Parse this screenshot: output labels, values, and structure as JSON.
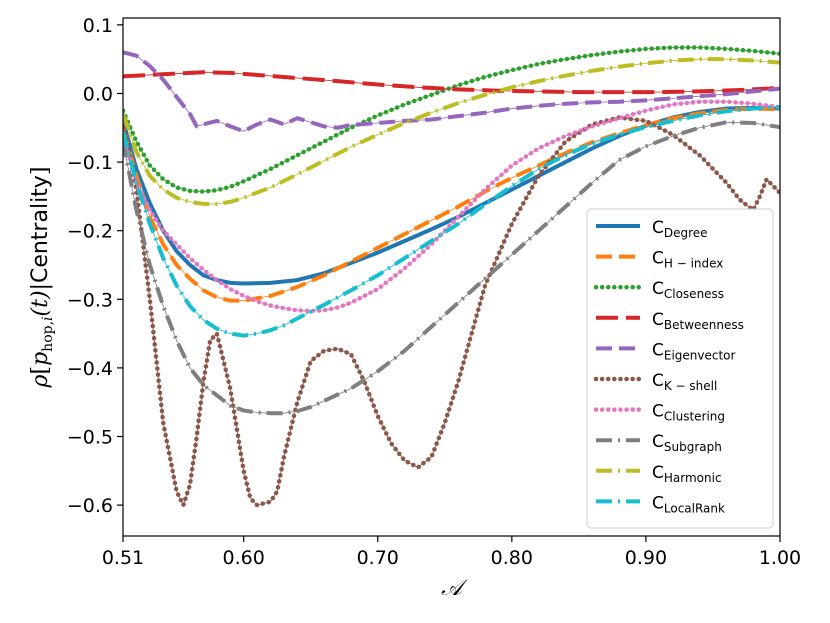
{
  "chart_data": {
    "type": "line",
    "title": "",
    "xlabel": "𝒜",
    "ylabel_parts": {
      "rho": "ρ",
      "open": "[",
      "p": "p",
      "sub": "hop,",
      "i": "i",
      "t": "(t)",
      "sep": "|",
      "word": "Centrality",
      "close": "]"
    },
    "xlim": [
      0.51,
      1.0
    ],
    "ylim": [
      -0.645,
      0.11
    ],
    "xticks": [
      0.51,
      0.6,
      0.7,
      0.8,
      0.9,
      1.0
    ],
    "xtick_labels": [
      "0.51",
      "0.60",
      "0.70",
      "0.80",
      "0.90",
      "1.00"
    ],
    "yticks": [
      0.1,
      0.0,
      -0.1,
      -0.2,
      -0.3,
      -0.4,
      -0.5,
      -0.6
    ],
    "ytick_labels": [
      "0.1",
      "0.0",
      "−0.1",
      "−0.2",
      "−0.3",
      "−0.4",
      "−0.5",
      "−0.6"
    ],
    "grid": false,
    "legend_position": "lower-right",
    "series": [
      {
        "name": "Degree",
        "label": "C",
        "sub": "Degree",
        "color": "#1f77b4",
        "style": "solid",
        "x": [
          0.51,
          0.52,
          0.53,
          0.54,
          0.55,
          0.56,
          0.57,
          0.58,
          0.59,
          0.6,
          0.62,
          0.64,
          0.66,
          0.68,
          0.7,
          0.72,
          0.74,
          0.76,
          0.78,
          0.8,
          0.82,
          0.84,
          0.86,
          0.88,
          0.9,
          0.92,
          0.94,
          0.96,
          0.98,
          1.0
        ],
        "y": [
          -0.04,
          -0.11,
          -0.16,
          -0.2,
          -0.23,
          -0.25,
          -0.265,
          -0.272,
          -0.276,
          -0.277,
          -0.276,
          -0.272,
          -0.262,
          -0.247,
          -0.232,
          -0.215,
          -0.198,
          -0.18,
          -0.16,
          -0.14,
          -0.12,
          -0.1,
          -0.08,
          -0.062,
          -0.047,
          -0.035,
          -0.027,
          -0.022,
          -0.021,
          -0.022
        ]
      },
      {
        "name": "H-index",
        "label": "C",
        "sub": "H − index",
        "color": "#ff7f0e",
        "style": "dashed",
        "x": [
          0.51,
          0.52,
          0.53,
          0.54,
          0.55,
          0.56,
          0.57,
          0.58,
          0.59,
          0.6,
          0.62,
          0.64,
          0.66,
          0.68,
          0.7,
          0.72,
          0.74,
          0.76,
          0.78,
          0.8,
          0.82,
          0.84,
          0.86,
          0.88,
          0.9,
          0.92,
          0.94,
          0.96,
          0.98,
          1.0
        ],
        "y": [
          -0.05,
          -0.12,
          -0.18,
          -0.22,
          -0.25,
          -0.27,
          -0.287,
          -0.297,
          -0.302,
          -0.302,
          -0.295,
          -0.282,
          -0.265,
          -0.245,
          -0.225,
          -0.205,
          -0.185,
          -0.165,
          -0.143,
          -0.123,
          -0.105,
          -0.087,
          -0.071,
          -0.058,
          -0.046,
          -0.036,
          -0.029,
          -0.024,
          -0.022,
          -0.023
        ]
      },
      {
        "name": "Closeness",
        "label": "C",
        "sub": "Closeness",
        "color": "#2ca02c",
        "style": "dotted",
        "x": [
          0.51,
          0.52,
          0.53,
          0.54,
          0.55,
          0.56,
          0.57,
          0.58,
          0.59,
          0.6,
          0.62,
          0.64,
          0.66,
          0.68,
          0.7,
          0.72,
          0.74,
          0.76,
          0.78,
          0.8,
          0.82,
          0.84,
          0.86,
          0.88,
          0.9,
          0.92,
          0.94,
          0.96,
          0.98,
          1.0
        ],
        "y": [
          -0.025,
          -0.07,
          -0.105,
          -0.125,
          -0.137,
          -0.142,
          -0.143,
          -0.141,
          -0.136,
          -0.128,
          -0.11,
          -0.09,
          -0.07,
          -0.05,
          -0.032,
          -0.016,
          -0.002,
          0.012,
          0.024,
          0.034,
          0.043,
          0.05,
          0.056,
          0.061,
          0.065,
          0.067,
          0.067,
          0.065,
          0.062,
          0.058
        ]
      },
      {
        "name": "Betweenness",
        "label": "C",
        "sub": "Betweenness",
        "color": "#d62728",
        "style": "longdash",
        "x": [
          0.51,
          0.53,
          0.55,
          0.57,
          0.59,
          0.61,
          0.63,
          0.65,
          0.67,
          0.7,
          0.73,
          0.76,
          0.79,
          0.82,
          0.85,
          0.88,
          0.91,
          0.94,
          0.97,
          1.0
        ],
        "y": [
          0.025,
          0.027,
          0.029,
          0.031,
          0.03,
          0.027,
          0.024,
          0.021,
          0.018,
          0.013,
          0.009,
          0.006,
          0.004,
          0.003,
          0.002,
          0.002,
          0.002,
          0.003,
          0.005,
          0.008
        ]
      },
      {
        "name": "Eigenvector",
        "label": "C",
        "sub": "Eigenvector",
        "color": "#9467bd",
        "style": "dashed",
        "x": [
          0.51,
          0.52,
          0.53,
          0.54,
          0.55,
          0.56,
          0.565,
          0.57,
          0.58,
          0.59,
          0.6,
          0.61,
          0.62,
          0.63,
          0.64,
          0.65,
          0.66,
          0.67,
          0.68,
          0.7,
          0.72,
          0.74,
          0.76,
          0.78,
          0.8,
          0.82,
          0.84,
          0.86,
          0.88,
          0.9,
          0.92,
          0.94,
          0.96,
          0.98,
          1.0
        ],
        "y": [
          0.06,
          0.055,
          0.04,
          0.02,
          -0.005,
          -0.03,
          -0.048,
          -0.045,
          -0.04,
          -0.048,
          -0.055,
          -0.045,
          -0.038,
          -0.045,
          -0.036,
          -0.042,
          -0.048,
          -0.05,
          -0.046,
          -0.043,
          -0.04,
          -0.038,
          -0.033,
          -0.028,
          -0.022,
          -0.018,
          -0.015,
          -0.013,
          -0.012,
          -0.01,
          -0.007,
          -0.004,
          -0.001,
          0.003,
          0.007
        ]
      },
      {
        "name": "K-shell",
        "label": "C",
        "sub": "K − shell",
        "color": "#8c564b",
        "style": "dotted-thick",
        "x": [
          0.51,
          0.52,
          0.53,
          0.54,
          0.55,
          0.555,
          0.56,
          0.565,
          0.57,
          0.575,
          0.58,
          0.59,
          0.6,
          0.605,
          0.61,
          0.62,
          0.625,
          0.63,
          0.64,
          0.65,
          0.66,
          0.67,
          0.68,
          0.69,
          0.7,
          0.71,
          0.72,
          0.73,
          0.74,
          0.75,
          0.76,
          0.77,
          0.78,
          0.8,
          0.82,
          0.84,
          0.86,
          0.88,
          0.9,
          0.92,
          0.94,
          0.96,
          0.97,
          0.98,
          0.985,
          0.99,
          1.0
        ],
        "y": [
          -0.04,
          -0.14,
          -0.3,
          -0.48,
          -0.58,
          -0.6,
          -0.57,
          -0.5,
          -0.42,
          -0.36,
          -0.35,
          -0.43,
          -0.55,
          -0.59,
          -0.6,
          -0.595,
          -0.58,
          -0.53,
          -0.45,
          -0.39,
          -0.375,
          -0.372,
          -0.38,
          -0.42,
          -0.47,
          -0.51,
          -0.535,
          -0.545,
          -0.53,
          -0.48,
          -0.42,
          -0.35,
          -0.28,
          -0.19,
          -0.12,
          -0.07,
          -0.045,
          -0.035,
          -0.04,
          -0.06,
          -0.09,
          -0.13,
          -0.155,
          -0.17,
          -0.15,
          -0.125,
          -0.145
        ]
      },
      {
        "name": "Clustering",
        "label": "C",
        "sub": "Clustering",
        "color": "#e377c2",
        "style": "dotted",
        "x": [
          0.51,
          0.52,
          0.53,
          0.54,
          0.55,
          0.56,
          0.57,
          0.58,
          0.59,
          0.6,
          0.61,
          0.62,
          0.63,
          0.64,
          0.65,
          0.66,
          0.67,
          0.68,
          0.7,
          0.72,
          0.74,
          0.76,
          0.78,
          0.8,
          0.82,
          0.84,
          0.86,
          0.88,
          0.9,
          0.92,
          0.94,
          0.96,
          0.98,
          1.0
        ],
        "y": [
          -0.06,
          -0.13,
          -0.17,
          -0.2,
          -0.22,
          -0.24,
          -0.257,
          -0.272,
          -0.285,
          -0.295,
          -0.303,
          -0.309,
          -0.313,
          -0.316,
          -0.317,
          -0.316,
          -0.312,
          -0.305,
          -0.285,
          -0.255,
          -0.22,
          -0.18,
          -0.14,
          -0.105,
          -0.08,
          -0.062,
          -0.048,
          -0.036,
          -0.025,
          -0.016,
          -0.012,
          -0.012,
          -0.015,
          -0.02
        ]
      },
      {
        "name": "Subgraph",
        "label": "C",
        "sub": "Subgraph",
        "color": "#7f7f7f",
        "style": "dashdot",
        "x": [
          0.51,
          0.52,
          0.53,
          0.54,
          0.55,
          0.56,
          0.57,
          0.58,
          0.59,
          0.6,
          0.61,
          0.62,
          0.63,
          0.64,
          0.65,
          0.66,
          0.68,
          0.7,
          0.72,
          0.74,
          0.76,
          0.78,
          0.8,
          0.82,
          0.84,
          0.86,
          0.88,
          0.9,
          0.92,
          0.94,
          0.96,
          0.98,
          1.0
        ],
        "y": [
          -0.07,
          -0.17,
          -0.25,
          -0.31,
          -0.36,
          -0.4,
          -0.425,
          -0.44,
          -0.455,
          -0.462,
          -0.465,
          -0.466,
          -0.466,
          -0.463,
          -0.457,
          -0.448,
          -0.43,
          -0.405,
          -0.375,
          -0.34,
          -0.305,
          -0.27,
          -0.235,
          -0.2,
          -0.165,
          -0.13,
          -0.097,
          -0.077,
          -0.062,
          -0.05,
          -0.042,
          -0.043,
          -0.049
        ]
      },
      {
        "name": "Harmonic",
        "label": "C",
        "sub": "Harmonic",
        "color": "#bcbd22",
        "style": "dashdot",
        "x": [
          0.51,
          0.52,
          0.53,
          0.54,
          0.55,
          0.56,
          0.57,
          0.58,
          0.59,
          0.6,
          0.62,
          0.64,
          0.66,
          0.68,
          0.7,
          0.72,
          0.74,
          0.76,
          0.78,
          0.8,
          0.82,
          0.84,
          0.86,
          0.88,
          0.9,
          0.92,
          0.94,
          0.96,
          0.98,
          1.0
        ],
        "y": [
          -0.03,
          -0.085,
          -0.12,
          -0.14,
          -0.152,
          -0.158,
          -0.161,
          -0.161,
          -0.158,
          -0.152,
          -0.137,
          -0.118,
          -0.098,
          -0.078,
          -0.06,
          -0.043,
          -0.028,
          -0.014,
          -0.002,
          0.009,
          0.018,
          0.026,
          0.033,
          0.039,
          0.044,
          0.048,
          0.05,
          0.05,
          0.048,
          0.045
        ]
      },
      {
        "name": "LocalRank",
        "label": "C",
        "sub": "LocalRank",
        "color": "#17becf",
        "style": "dashdot",
        "x": [
          0.51,
          0.52,
          0.53,
          0.54,
          0.55,
          0.56,
          0.57,
          0.58,
          0.59,
          0.6,
          0.61,
          0.62,
          0.63,
          0.64,
          0.66,
          0.68,
          0.7,
          0.72,
          0.74,
          0.76,
          0.78,
          0.8,
          0.82,
          0.84,
          0.86,
          0.88,
          0.9,
          0.92,
          0.94,
          0.96,
          0.98,
          1.0
        ],
        "y": [
          -0.055,
          -0.13,
          -0.19,
          -0.24,
          -0.28,
          -0.31,
          -0.33,
          -0.343,
          -0.35,
          -0.353,
          -0.35,
          -0.345,
          -0.338,
          -0.328,
          -0.308,
          -0.287,
          -0.265,
          -0.24,
          -0.215,
          -0.19,
          -0.162,
          -0.135,
          -0.11,
          -0.09,
          -0.073,
          -0.06,
          -0.049,
          -0.04,
          -0.032,
          -0.026,
          -0.022,
          -0.02
        ]
      }
    ]
  }
}
